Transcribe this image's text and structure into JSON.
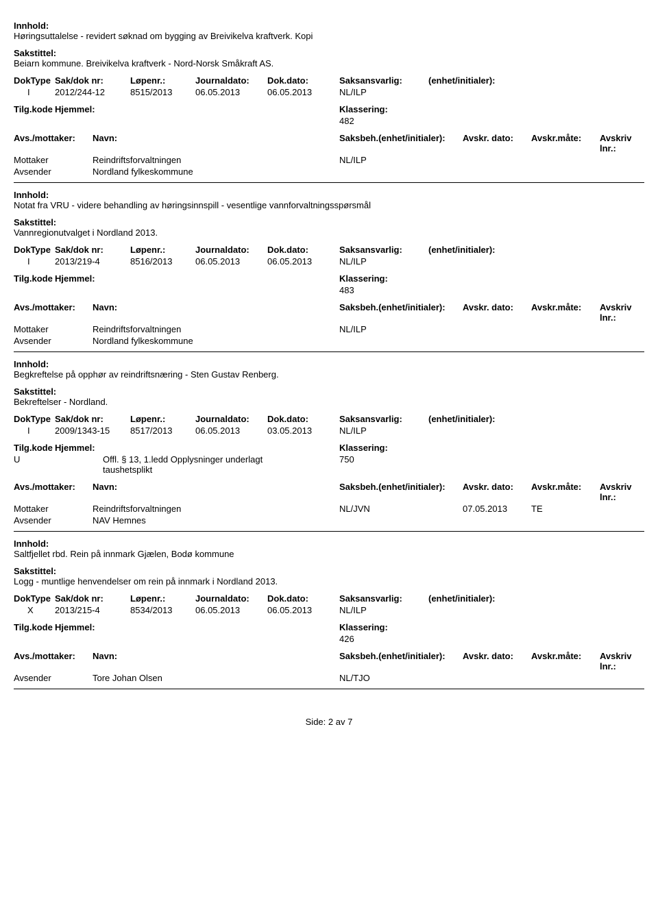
{
  "labels": {
    "innhold": "Innhold:",
    "sakstittel": "Sakstittel:",
    "doktype": "DokType",
    "sakdok": "Sak/dok nr:",
    "lopenr": "Løpenr.:",
    "journaldato": "Journaldato:",
    "dokdato": "Dok.dato:",
    "saksansvarlig": "Saksansvarlig:",
    "enhet": "(enhet/initialer):",
    "tilgkode": "Tilg.kode",
    "hjemmel": "Hjemmel:",
    "klassering": "Klassering:",
    "avsmottaker": "Avs./mottaker:",
    "navn": "Navn:",
    "saksbeh": "Saksbeh.(enhet/initialer):",
    "avskrdato": "Avskr. dato:",
    "avskrmate": "Avskr.måte:",
    "avskrivlnr": "Avskriv lnr.:",
    "mottaker": "Mottaker",
    "avsender": "Avsender"
  },
  "records": [
    {
      "innhold": "Høringsuttalelse - revidert søknad om bygging av Breivikelva kraftverk. Kopi",
      "sakstittel": "Beiarn kommune. Breivikelva kraftverk - Nord-Norsk Småkraft AS.",
      "doktype": "I",
      "sakdok": "2012/244-12",
      "lopenr": "8515/2013",
      "journaldato": "06.05.2013",
      "dokdato": "06.05.2013",
      "saksansvarlig": "NL/ILP",
      "tilgkode": "",
      "hjemmel": "",
      "klassering": "482",
      "parties": [
        {
          "role": "Mottaker",
          "name": "Reindriftsforvaltningen",
          "saksbeh": "NL/ILP",
          "avskrdato": "",
          "avskrmate": ""
        },
        {
          "role": "Avsender",
          "name": "Nordland fylkeskommune",
          "saksbeh": "",
          "avskrdato": "",
          "avskrmate": ""
        }
      ]
    },
    {
      "innhold": "Notat fra VRU - videre behandling av høringsinnspill - vesentlige vannforvaltningsspørsmål",
      "sakstittel": "Vannregionutvalget i Nordland 2013.",
      "doktype": "I",
      "sakdok": "2013/219-4",
      "lopenr": "8516/2013",
      "journaldato": "06.05.2013",
      "dokdato": "06.05.2013",
      "saksansvarlig": "NL/ILP",
      "tilgkode": "",
      "hjemmel": "",
      "klassering": "483",
      "parties": [
        {
          "role": "Mottaker",
          "name": "Reindriftsforvaltningen",
          "saksbeh": "NL/ILP",
          "avskrdato": "",
          "avskrmate": ""
        },
        {
          "role": "Avsender",
          "name": "Nordland fylkeskommune",
          "saksbeh": "",
          "avskrdato": "",
          "avskrmate": ""
        }
      ]
    },
    {
      "innhold": "Begkreftelse på opphør av reindriftsnæring - Sten Gustav Renberg.",
      "sakstittel": "Bekreftelser  - Nordland.",
      "doktype": "I",
      "sakdok": "2009/1343-15",
      "lopenr": "8517/2013",
      "journaldato": "06.05.2013",
      "dokdato": "03.05.2013",
      "saksansvarlig": "NL/ILP",
      "tilgkode": "U",
      "hjemmel": "Offl. § 13, 1.ledd Opplysninger underlagt taushetsplikt",
      "klassering": "750",
      "parties": [
        {
          "role": "Mottaker",
          "name": "Reindriftsforvaltningen",
          "saksbeh": "NL/JVN",
          "avskrdato": "07.05.2013",
          "avskrmate": "TE"
        },
        {
          "role": "Avsender",
          "name": "NAV Hemnes",
          "saksbeh": "",
          "avskrdato": "",
          "avskrmate": ""
        }
      ]
    },
    {
      "innhold": "Saltfjellet rbd. Rein på innmark Gjælen, Bodø kommune",
      "sakstittel": "Logg - muntlige henvendelser om rein på innmark i Nordland 2013.",
      "doktype": "X",
      "sakdok": "2013/215-4",
      "lopenr": "8534/2013",
      "journaldato": "06.05.2013",
      "dokdato": "06.05.2013",
      "saksansvarlig": "NL/ILP",
      "tilgkode": "",
      "hjemmel": "",
      "klassering": "426",
      "parties": [
        {
          "role": "Avsender",
          "name": "Tore Johan Olsen",
          "saksbeh": "NL/TJO",
          "avskrdato": "",
          "avskrmate": ""
        }
      ]
    }
  ],
  "footer": {
    "side": "Side:",
    "page": "2",
    "av": "av",
    "total": "7"
  }
}
